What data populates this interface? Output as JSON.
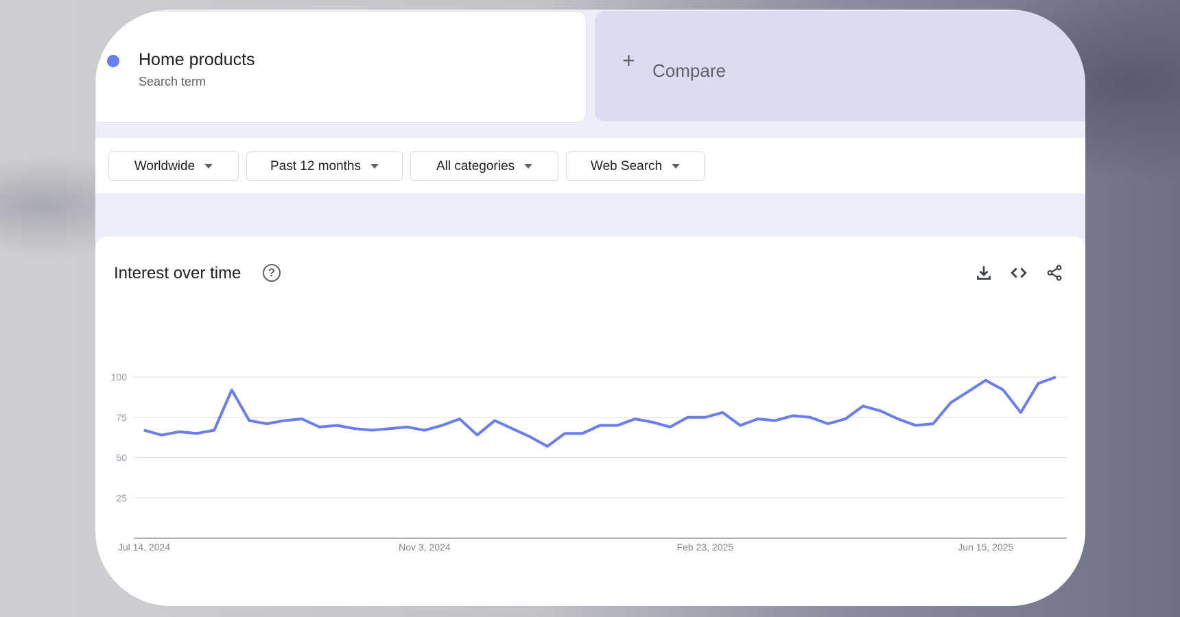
{
  "search_term": {
    "name": "Home products",
    "subtitle": "Search term",
    "color": "#6b7de8"
  },
  "compare": {
    "icon": "plus-icon",
    "label": "Compare"
  },
  "filters": [
    {
      "label": "Worldwide"
    },
    {
      "label": "Past 12 months"
    },
    {
      "label": "All categories"
    },
    {
      "label": "Web Search"
    }
  ],
  "chart_section": {
    "title": "Interest over time",
    "icons": [
      "help-icon",
      "download-icon",
      "embed-code-icon",
      "share-icon"
    ]
  },
  "chart_data": {
    "type": "line",
    "title": "Interest over time",
    "ylim": [
      0,
      100
    ],
    "yticks": [
      25,
      50,
      75,
      100
    ],
    "grid": true,
    "xtick_labels": [
      "Jul 14, 2024",
      "Nov 3, 2024",
      "Feb 23, 2025",
      "Jun 15, 2025"
    ],
    "xtick_index": [
      0,
      16,
      32,
      48
    ],
    "series": [
      {
        "color": "#6b7de8",
        "values": [
          67,
          64,
          66,
          65,
          67,
          92,
          73,
          71,
          73,
          74,
          69,
          70,
          68,
          67,
          68,
          69,
          67,
          70,
          74,
          64,
          73,
          68,
          63,
          57,
          65,
          65,
          70,
          70,
          74,
          72,
          69,
          75,
          75,
          78,
          70,
          74,
          73,
          76,
          75,
          71,
          74,
          82,
          79,
          74,
          70,
          71,
          84,
          91,
          98,
          92,
          78,
          96,
          100
        ]
      }
    ]
  }
}
